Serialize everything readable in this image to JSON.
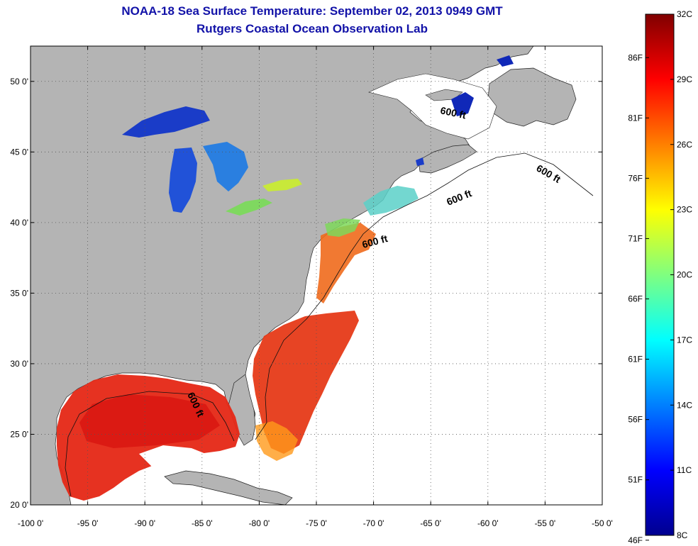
{
  "header": {
    "title": "NOAA-18 Sea Surface Temperature:  September 02, 2013 0949 GMT",
    "subtitle": "Rutgers Coastal Ocean Observation Lab"
  },
  "map": {
    "lon_labels": [
      "-100 0'",
      "-95 0'",
      "-90 0'",
      "-85 0'",
      "-80 0'",
      "-75 0'",
      "-70 0'",
      "-65 0'",
      "-60 0'",
      "-55 0'",
      "-50 0'"
    ],
    "lon_values": [
      -100,
      -95,
      -90,
      -85,
      -80,
      -75,
      -70,
      -65,
      -60,
      -55,
      -50
    ],
    "lat_labels": [
      "20 0'",
      "25 0'",
      "30 0'",
      "35 0'",
      "40 0'",
      "45 0'",
      "50 0'"
    ],
    "lat_values": [
      20,
      25,
      30,
      35,
      40,
      45,
      50
    ],
    "lon_range": [
      -100,
      -50
    ],
    "lat_range": [
      20,
      52.5
    ],
    "grid": "dotted",
    "colors": {
      "land": "#b4b4b4",
      "no_data": "#ffffff",
      "gulf_sst": "#e8281a",
      "lakes": "#1a3cc8"
    },
    "isobath_labels": [
      "600 ft",
      "600 ft",
      "600 ft",
      "600 ft",
      "600 ft"
    ]
  },
  "colorbar": {
    "colormap": "jet",
    "min_c": 8,
    "max_c": 32,
    "celsius_labels": [
      "32C",
      "29C",
      "26C",
      "23C",
      "20C",
      "17C",
      "14C",
      "11C",
      "8C"
    ],
    "celsius_values": [
      32,
      29,
      26,
      23,
      20,
      17,
      14,
      11,
      8
    ],
    "fahrenheit_labels": [
      "86F",
      "81F",
      "76F",
      "71F",
      "66F",
      "61F",
      "56F",
      "51F",
      "46F"
    ],
    "fahrenheit_values": [
      86,
      81,
      76,
      71,
      66,
      61,
      56,
      51,
      46
    ]
  }
}
